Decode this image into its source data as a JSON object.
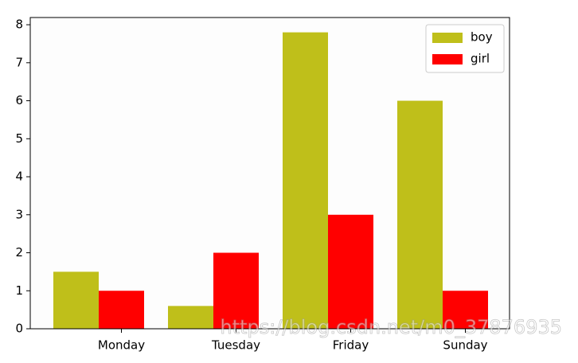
{
  "chart_data": {
    "type": "bar",
    "categories": [
      "Monday",
      "Tuesday",
      "Friday",
      "Sunday"
    ],
    "series": [
      {
        "name": "boy",
        "color": "#bfbf1a",
        "values": [
          1.5,
          0.6,
          7.8,
          6.0
        ]
      },
      {
        "name": "girl",
        "color": "#ff0000",
        "values": [
          1.0,
          2.0,
          3.0,
          1.0
        ]
      }
    ],
    "ylim": [
      0,
      8.19
    ],
    "yticks": [
      0,
      1,
      2,
      3,
      4,
      5,
      6,
      7,
      8
    ],
    "legend": "upper right",
    "watermark": "https://blog.csdn.net/m0_37876935"
  }
}
